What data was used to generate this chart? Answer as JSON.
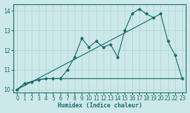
{
  "xlabel": "Humidex (Indice chaleur)",
  "ylabel": "",
  "bg_color": "#cce8e8",
  "line_color": "#1a6b6b",
  "grid_color": "#b8d8d8",
  "xlim": [
    -0.5,
    23.5
  ],
  "ylim": [
    9.85,
    14.35
  ],
  "xticks": [
    0,
    1,
    2,
    3,
    4,
    5,
    6,
    7,
    8,
    9,
    10,
    11,
    12,
    13,
    14,
    15,
    16,
    17,
    18,
    19,
    20,
    21,
    22,
    23
  ],
  "yticks": [
    10,
    11,
    12,
    13,
    14
  ],
  "line1_x": [
    0,
    1,
    2,
    3,
    4,
    5,
    6,
    7,
    8,
    9,
    10,
    11,
    12,
    13,
    14,
    15,
    16,
    17,
    18,
    19,
    20,
    21,
    22,
    23
  ],
  "line1_y": [
    10.0,
    10.3,
    10.4,
    10.5,
    10.55,
    10.55,
    10.55,
    11.0,
    11.65,
    12.6,
    12.15,
    12.45,
    12.15,
    12.3,
    11.65,
    13.0,
    13.85,
    14.1,
    13.85,
    13.65,
    13.85,
    12.45,
    11.75,
    10.55
  ],
  "line2_x": [
    0,
    1,
    2,
    3,
    4,
    5,
    6,
    7,
    8,
    9,
    10,
    11,
    12,
    13,
    14,
    15,
    16,
    17,
    18,
    19,
    20,
    21,
    22,
    23
  ],
  "line2_y": [
    10.0,
    10.3,
    10.4,
    10.5,
    10.55,
    10.55,
    10.55,
    10.55,
    10.55,
    10.55,
    10.55,
    10.55,
    10.55,
    10.55,
    10.55,
    10.55,
    10.55,
    10.55,
    10.55,
    10.55,
    10.55,
    10.55,
    10.55,
    10.55
  ],
  "line3_x": [
    0,
    19
  ],
  "line3_y": [
    10.0,
    13.65
  ]
}
